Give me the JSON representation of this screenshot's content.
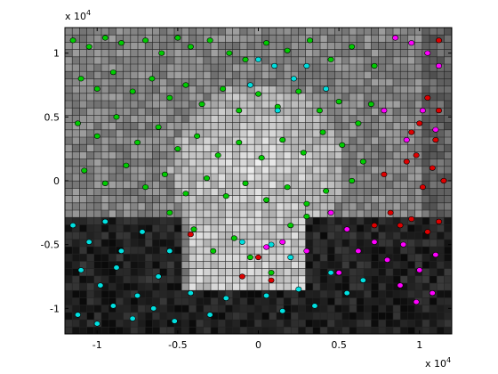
{
  "chart_data": {
    "type": "scatter",
    "title": "",
    "xlabel": "",
    "ylabel": "",
    "xlim": [
      -1.2,
      1.2
    ],
    "ylim": [
      -1.2,
      1.2
    ],
    "x_scale_label": "x 10",
    "x_scale_exp": "4",
    "y_scale_label": "x 10",
    "y_scale_exp": "4",
    "x_ticks": [
      -1,
      -0.5,
      0,
      0.5,
      1
    ],
    "x_tick_labels": [
      "-1",
      "-0.5",
      "0",
      "0.5",
      "1"
    ],
    "y_ticks": [
      1,
      0.5,
      0,
      -0.5,
      -1
    ],
    "y_tick_labels": [
      "1",
      "0.5",
      "0",
      "-0.5",
      "-1"
    ],
    "background": "grayscale voronoi-like mosaic with dark grid lines",
    "series": [
      {
        "color": "#00cc00",
        "points": [
          [
            -1.15,
            1.1
          ],
          [
            -1.05,
            1.05
          ],
          [
            -0.95,
            1.12
          ],
          [
            -0.85,
            1.08
          ],
          [
            -0.7,
            1.1
          ],
          [
            -0.6,
            1.0
          ],
          [
            -0.5,
            1.12
          ],
          [
            -0.42,
            1.05
          ],
          [
            -0.3,
            1.1
          ],
          [
            -0.18,
            1.0
          ],
          [
            -0.08,
            0.95
          ],
          [
            0.05,
            1.08
          ],
          [
            0.18,
            1.02
          ],
          [
            0.32,
            1.1
          ],
          [
            0.45,
            0.95
          ],
          [
            0.58,
            1.05
          ],
          [
            -1.1,
            0.8
          ],
          [
            -1.0,
            0.72
          ],
          [
            -0.9,
            0.85
          ],
          [
            -0.78,
            0.7
          ],
          [
            -0.66,
            0.8
          ],
          [
            -0.55,
            0.65
          ],
          [
            -0.45,
            0.75
          ],
          [
            -0.35,
            0.6
          ],
          [
            -0.22,
            0.72
          ],
          [
            -0.12,
            0.55
          ],
          [
            0.0,
            0.68
          ],
          [
            0.12,
            0.58
          ],
          [
            0.25,
            0.7
          ],
          [
            0.38,
            0.55
          ],
          [
            0.5,
            0.62
          ],
          [
            0.62,
            0.45
          ],
          [
            -1.12,
            0.45
          ],
          [
            -1.0,
            0.35
          ],
          [
            -0.88,
            0.5
          ],
          [
            -0.75,
            0.3
          ],
          [
            -0.62,
            0.42
          ],
          [
            -0.5,
            0.25
          ],
          [
            -0.38,
            0.35
          ],
          [
            -0.25,
            0.2
          ],
          [
            -0.12,
            0.3
          ],
          [
            0.02,
            0.18
          ],
          [
            0.15,
            0.32
          ],
          [
            0.28,
            0.22
          ],
          [
            0.4,
            0.38
          ],
          [
            0.52,
            0.28
          ],
          [
            0.65,
            0.15
          ],
          [
            -1.08,
            0.08
          ],
          [
            -0.95,
            -0.02
          ],
          [
            -0.82,
            0.12
          ],
          [
            -0.7,
            -0.05
          ],
          [
            -0.58,
            0.05
          ],
          [
            -0.45,
            -0.1
          ],
          [
            -0.32,
            0.02
          ],
          [
            -0.2,
            -0.12
          ],
          [
            -0.08,
            -0.02
          ],
          [
            0.05,
            -0.15
          ],
          [
            0.18,
            -0.05
          ],
          [
            0.3,
            -0.18
          ],
          [
            0.42,
            -0.08
          ],
          [
            0.58,
            0.0
          ],
          [
            -0.15,
            -0.45
          ],
          [
            -0.05,
            -0.6
          ],
          [
            0.08,
            -0.72
          ],
          [
            -0.28,
            -0.55
          ],
          [
            -0.4,
            -0.38
          ],
          [
            0.2,
            -0.35
          ],
          [
            0.3,
            -0.28
          ],
          [
            -0.55,
            -0.25
          ],
          [
            0.7,
            0.6
          ],
          [
            0.72,
            0.9
          ]
        ]
      },
      {
        "color": "#00e0e0",
        "points": [
          [
            -1.15,
            -0.35
          ],
          [
            -1.05,
            -0.48
          ],
          [
            -0.95,
            -0.32
          ],
          [
            -0.85,
            -0.55
          ],
          [
            -0.72,
            -0.4
          ],
          [
            -1.1,
            -0.7
          ],
          [
            -0.98,
            -0.82
          ],
          [
            -0.88,
            -0.68
          ],
          [
            -0.75,
            -0.9
          ],
          [
            -0.62,
            -0.75
          ],
          [
            -1.12,
            -1.05
          ],
          [
            -1.0,
            -1.12
          ],
          [
            -0.9,
            -0.98
          ],
          [
            -0.78,
            -1.08
          ],
          [
            -0.65,
            -1.0
          ],
          [
            -0.52,
            -1.1
          ],
          [
            -0.42,
            -0.88
          ],
          [
            -0.55,
            -0.55
          ],
          [
            -0.3,
            -1.05
          ],
          [
            -0.2,
            -0.92
          ],
          [
            0.05,
            -0.9
          ],
          [
            0.15,
            -1.02
          ],
          [
            0.25,
            -0.85
          ],
          [
            0.35,
            -0.98
          ],
          [
            0.45,
            -0.72
          ],
          [
            0.55,
            -0.88
          ],
          [
            0.65,
            -0.78
          ],
          [
            0.2,
            -0.6
          ],
          [
            0.0,
            0.95
          ],
          [
            0.1,
            0.9
          ],
          [
            0.22,
            0.8
          ],
          [
            -0.05,
            0.75
          ],
          [
            0.3,
            0.9
          ],
          [
            0.42,
            0.72
          ],
          [
            0.12,
            0.55
          ],
          [
            -0.1,
            -0.48
          ],
          [
            0.08,
            -0.5
          ]
        ]
      },
      {
        "color": "#ff00ff",
        "points": [
          [
            0.85,
            1.12
          ],
          [
            0.95,
            1.08
          ],
          [
            1.05,
            1.0
          ],
          [
            1.12,
            0.9
          ],
          [
            1.02,
            0.55
          ],
          [
            1.1,
            0.4
          ],
          [
            0.92,
            0.32
          ],
          [
            0.78,
            0.55
          ],
          [
            0.45,
            -0.25
          ],
          [
            0.55,
            -0.38
          ],
          [
            0.62,
            -0.55
          ],
          [
            0.72,
            -0.48
          ],
          [
            0.8,
            -0.62
          ],
          [
            0.9,
            -0.5
          ],
          [
            1.0,
            -0.7
          ],
          [
            1.1,
            -0.58
          ],
          [
            0.5,
            -0.72
          ],
          [
            0.88,
            -0.82
          ],
          [
            0.98,
            -0.95
          ],
          [
            1.08,
            -0.88
          ],
          [
            0.3,
            -0.55
          ],
          [
            0.15,
            -0.48
          ],
          [
            0.05,
            -0.52
          ]
        ]
      },
      {
        "color": "#dd0000",
        "points": [
          [
            1.05,
            0.65
          ],
          [
            1.12,
            0.55
          ],
          [
            1.0,
            0.45
          ],
          [
            1.1,
            0.32
          ],
          [
            0.98,
            0.2
          ],
          [
            1.08,
            0.1
          ],
          [
            1.15,
            0.0
          ],
          [
            1.02,
            -0.05
          ],
          [
            0.95,
            0.38
          ],
          [
            0.88,
            -0.35
          ],
          [
            0.82,
            -0.25
          ],
          [
            0.95,
            -0.3
          ],
          [
            1.05,
            -0.4
          ],
          [
            1.12,
            -0.32
          ],
          [
            0.72,
            -0.35
          ],
          [
            -0.42,
            -0.42
          ],
          [
            0.0,
            -0.6
          ],
          [
            0.08,
            -0.78
          ],
          [
            -0.1,
            -0.75
          ],
          [
            1.12,
            1.1
          ],
          [
            0.92,
            0.15
          ],
          [
            0.78,
            0.05
          ]
        ]
      }
    ]
  }
}
